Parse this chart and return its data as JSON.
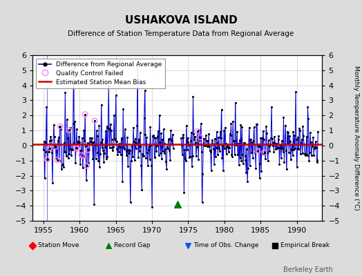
{
  "title": "USHAKOVA ISLAND",
  "subtitle": "Difference of Station Temperature Data from Regional Average",
  "ylabel_right": "Monthly Temperature Anomaly Difference (°C)",
  "ylim": [
    -5,
    6
  ],
  "yticks": [
    -5,
    -4,
    -3,
    -2,
    -1,
    0,
    1,
    2,
    3,
    4,
    5,
    6
  ],
  "xticks": [
    1955,
    1960,
    1965,
    1970,
    1975,
    1980,
    1985,
    1990
  ],
  "xlim": [
    1953.5,
    1993.5
  ],
  "background_color": "#dcdcdc",
  "plot_bg_color": "#ffffff",
  "watermark": "Berkeley Earth",
  "bias_y": 0.08,
  "record_gap_x": 1973.5,
  "record_gap_y": -3.9,
  "line_color": "#0000cc",
  "stem_color": "#8888ff",
  "qc_color": "#ff80ff",
  "bias_color": "#cc0000",
  "grid_color": "#cccccc"
}
